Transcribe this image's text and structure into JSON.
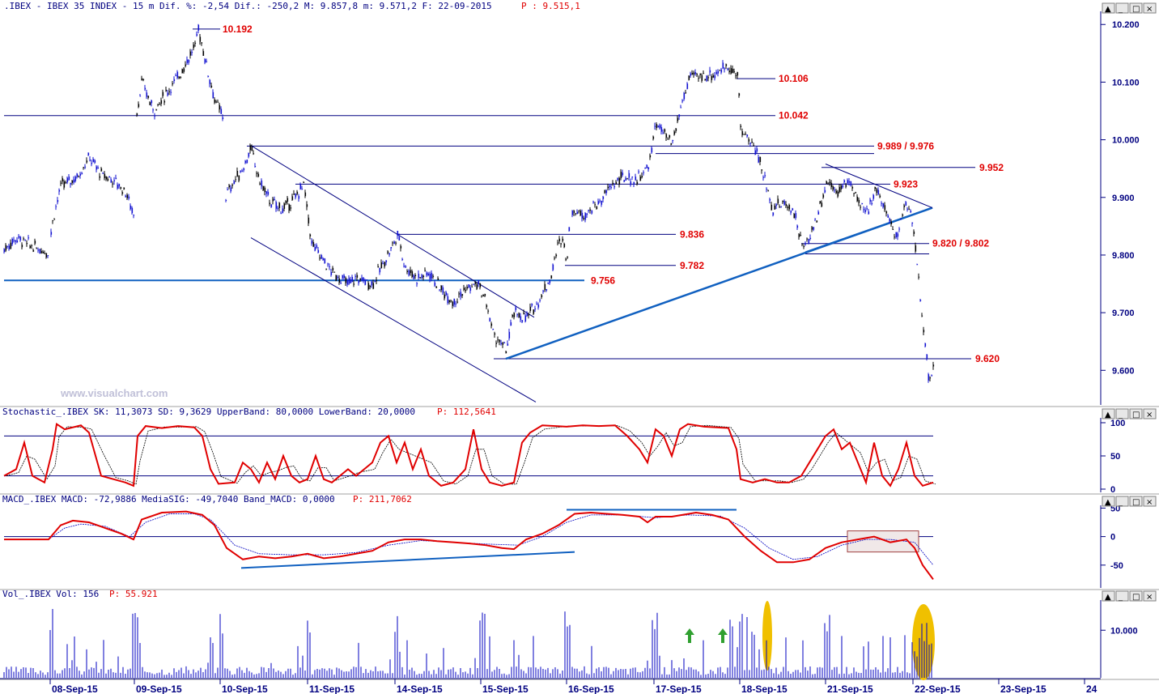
{
  "header": {
    "main": ".IBEX - IBEX 35 INDEX -  15 m Dif. %: -2,54 Dif.: -250,2 M: 9.857,8 m: 9.571,2 F: 22-09-2015",
    "main_p": "P : 9.515,1",
    "stoch": "Stochastic_.IBEX SK: 11,3073 SD: 9,3629 UpperBand: 80,0000 LowerBand: 20,0000",
    "stoch_p": "P: 112,5641",
    "macd": "MACD_.IBEX MACD: -72,9886 MediaSIG: -49,7040 Band_MACD: 0,0000",
    "macd_p": "P: 211,7062",
    "vol": "Vol_.IBEX Vol: 156",
    "vol_p": "P: 55.921"
  },
  "watermark": "www.visualchart.com",
  "colors": {
    "up": "#000000",
    "down": "#1010d0",
    "line": "#000080",
    "red": "#e00000",
    "trend": "#1060c0",
    "vol": "#0000c0",
    "highlight": "#f0c000"
  },
  "window_buttons": [
    "▲",
    "_",
    "□",
    "×"
  ],
  "chart_data": [
    {
      "type": "candlestick",
      "name": "price",
      "ylim": [
        9540,
        10220
      ],
      "yticks": [
        "10.200",
        "10.100",
        "10.000",
        "9.900",
        "9.800",
        "9.700",
        "9.600"
      ],
      "ytick_values": [
        10200,
        10100,
        10000,
        9900,
        9800,
        9700,
        9600
      ],
      "dates": [
        "08-Sep-15",
        "09-Sep-15",
        "10-Sep-15",
        "11-Sep-15",
        "14-Sep-15",
        "15-Sep-15",
        "16-Sep-15",
        "17-Sep-15",
        "18-Sep-15",
        "21-Sep-15",
        "22-Sep-15",
        "23-Sep-15",
        "24"
      ],
      "levels": [
        {
          "label": "10.192",
          "value": 10192
        },
        {
          "label": "10.106",
          "value": 10106
        },
        {
          "label": "10.042",
          "value": 10042
        },
        {
          "label": "9.989 / 9.976",
          "value": 9989
        },
        {
          "label": "9.952",
          "value": 9952
        },
        {
          "label": "9.923",
          "value": 9923
        },
        {
          "label": "9.836",
          "value": 9836
        },
        {
          "label": "9.820 / 9.802",
          "value": 9820
        },
        {
          "label": "9.782",
          "value": 9782
        },
        {
          "label": "9.756",
          "value": 9756
        },
        {
          "label": "9.620",
          "value": 9620
        }
      ],
      "path": [
        [
          5,
          9810
        ],
        [
          20,
          9830
        ],
        [
          40,
          9815
        ],
        [
          60,
          9805
        ],
        [
          65,
          9860
        ],
        [
          75,
          9920
        ],
        [
          95,
          9935
        ],
        [
          110,
          9970
        ],
        [
          125,
          9940
        ],
        [
          140,
          9930
        ],
        [
          155,
          9910
        ],
        [
          165,
          9870
        ],
        [
          168,
          10040
        ],
        [
          175,
          10100
        ],
        [
          190,
          10050
        ],
        [
          205,
          10080
        ],
        [
          220,
          10110
        ],
        [
          240,
          10160
        ],
        [
          245,
          10192
        ],
        [
          255,
          10130
        ],
        [
          265,
          10070
        ],
        [
          275,
          10040
        ],
        [
          278,
          9900
        ],
        [
          290,
          9930
        ],
        [
          300,
          9950
        ],
        [
          310,
          9985
        ],
        [
          320,
          9930
        ],
        [
          335,
          9890
        ],
        [
          350,
          9880
        ],
        [
          365,
          9900
        ],
        [
          375,
          9923
        ],
        [
          385,
          9820
        ],
        [
          395,
          9800
        ],
        [
          410,
          9770
        ],
        [
          430,
          9750
        ],
        [
          440,
          9760
        ],
        [
          460,
          9750
        ],
        [
          475,
          9790
        ],
        [
          492,
          9836
        ],
        [
          500,
          9780
        ],
        [
          515,
          9760
        ],
        [
          530,
          9770
        ],
        [
          545,
          9740
        ],
        [
          560,
          9720
        ],
        [
          575,
          9740
        ],
        [
          590,
          9750
        ],
        [
          600,
          9720
        ],
        [
          610,
          9660
        ],
        [
          625,
          9635
        ],
        [
          635,
          9700
        ],
        [
          650,
          9690
        ],
        [
          665,
          9720
        ],
        [
          680,
          9760
        ],
        [
          690,
          9820
        ],
        [
          696,
          9833
        ],
        [
          700,
          9782
        ],
        [
          705,
          9880
        ],
        [
          720,
          9870
        ],
        [
          740,
          9890
        ],
        [
          755,
          9920
        ],
        [
          770,
          9935
        ],
        [
          785,
          9930
        ],
        [
          800,
          9950
        ],
        [
          805,
          9980
        ],
        [
          810,
          10030
        ],
        [
          820,
          10010
        ],
        [
          830,
          9990
        ],
        [
          840,
          10050
        ],
        [
          852,
          10110
        ],
        [
          870,
          10110
        ],
        [
          885,
          10115
        ],
        [
          900,
          10130
        ],
        [
          912,
          10106
        ],
        [
          915,
          10020
        ],
        [
          925,
          10000
        ],
        [
          935,
          9980
        ],
        [
          945,
          9930
        ],
        [
          955,
          9880
        ],
        [
          965,
          9890
        ],
        [
          980,
          9880
        ],
        [
          992,
          9810
        ],
        [
          1000,
          9830
        ],
        [
          1010,
          9870
        ],
        [
          1022,
          9930
        ],
        [
          1035,
          9910
        ],
        [
          1050,
          9930
        ],
        [
          1060,
          9890
        ],
        [
          1070,
          9870
        ],
        [
          1082,
          9920
        ],
        [
          1092,
          9880
        ],
        [
          1100,
          9860
        ],
        [
          1108,
          9830
        ],
        [
          1118,
          9890
        ],
        [
          1125,
          9880
        ],
        [
          1130,
          9820
        ],
        [
          1135,
          9760
        ],
        [
          1140,
          9680
        ],
        [
          1145,
          9620
        ],
        [
          1148,
          9580
        ],
        [
          1153,
          9610
        ]
      ]
    },
    {
      "type": "line",
      "name": "stochastic",
      "ylim": [
        0,
        100
      ],
      "yticks": [
        "100",
        "50",
        "0"
      ],
      "ytick_values": [
        100,
        50,
        0
      ],
      "bands": [
        80,
        20
      ],
      "sk": [
        [
          5,
          20
        ],
        [
          20,
          30
        ],
        [
          30,
          70
        ],
        [
          40,
          20
        ],
        [
          55,
          10
        ],
        [
          65,
          60
        ],
        [
          70,
          98
        ],
        [
          80,
          90
        ],
        [
          100,
          96
        ],
        [
          110,
          85
        ],
        [
          125,
          20
        ],
        [
          140,
          15
        ],
        [
          155,
          10
        ],
        [
          165,
          5
        ],
        [
          170,
          80
        ],
        [
          180,
          95
        ],
        [
          200,
          92
        ],
        [
          220,
          95
        ],
        [
          240,
          93
        ],
        [
          250,
          80
        ],
        [
          260,
          30
        ],
        [
          270,
          8
        ],
        [
          290,
          10
        ],
        [
          300,
          40
        ],
        [
          310,
          30
        ],
        [
          320,
          10
        ],
        [
          330,
          40
        ],
        [
          340,
          15
        ],
        [
          350,
          50
        ],
        [
          360,
          20
        ],
        [
          370,
          10
        ],
        [
          380,
          15
        ],
        [
          390,
          50
        ],
        [
          400,
          15
        ],
        [
          410,
          10
        ],
        [
          430,
          30
        ],
        [
          440,
          20
        ],
        [
          460,
          40
        ],
        [
          470,
          70
        ],
        [
          480,
          80
        ],
        [
          490,
          40
        ],
        [
          500,
          70
        ],
        [
          510,
          30
        ],
        [
          520,
          60
        ],
        [
          530,
          20
        ],
        [
          545,
          5
        ],
        [
          560,
          10
        ],
        [
          575,
          30
        ],
        [
          585,
          90
        ],
        [
          595,
          30
        ],
        [
          605,
          10
        ],
        [
          620,
          5
        ],
        [
          635,
          10
        ],
        [
          645,
          70
        ],
        [
          655,
          85
        ],
        [
          670,
          96
        ],
        [
          700,
          94
        ],
        [
          720,
          96
        ],
        [
          740,
          95
        ],
        [
          760,
          96
        ],
        [
          775,
          80
        ],
        [
          790,
          60
        ],
        [
          800,
          40
        ],
        [
          810,
          90
        ],
        [
          820,
          80
        ],
        [
          830,
          50
        ],
        [
          840,
          90
        ],
        [
          850,
          98
        ],
        [
          870,
          94
        ],
        [
          900,
          92
        ],
        [
          910,
          60
        ],
        [
          915,
          15
        ],
        [
          930,
          10
        ],
        [
          945,
          15
        ],
        [
          960,
          10
        ],
        [
          975,
          10
        ],
        [
          990,
          20
        ],
        [
          1000,
          40
        ],
        [
          1010,
          60
        ],
        [
          1020,
          80
        ],
        [
          1030,
          90
        ],
        [
          1040,
          60
        ],
        [
          1050,
          70
        ],
        [
          1060,
          40
        ],
        [
          1070,
          10
        ],
        [
          1080,
          70
        ],
        [
          1090,
          20
        ],
        [
          1100,
          5
        ],
        [
          1110,
          30
        ],
        [
          1120,
          70
        ],
        [
          1130,
          20
        ],
        [
          1140,
          5
        ],
        [
          1153,
          10
        ]
      ]
    },
    {
      "type": "line",
      "name": "macd",
      "ylim": [
        -90,
        52
      ],
      "yticks": [
        "50",
        "0",
        "-50"
      ],
      "ytick_values": [
        50,
        0,
        -50
      ],
      "macd": [
        [
          5,
          -5
        ],
        [
          40,
          -5
        ],
        [
          60,
          -5
        ],
        [
          75,
          20
        ],
        [
          90,
          28
        ],
        [
          110,
          25
        ],
        [
          130,
          15
        ],
        [
          150,
          5
        ],
        [
          165,
          -5
        ],
        [
          175,
          30
        ],
        [
          200,
          42
        ],
        [
          230,
          44
        ],
        [
          250,
          38
        ],
        [
          265,
          20
        ],
        [
          280,
          -20
        ],
        [
          300,
          -40
        ],
        [
          320,
          -35
        ],
        [
          340,
          -38
        ],
        [
          360,
          -35
        ],
        [
          380,
          -30
        ],
        [
          400,
          -38
        ],
        [
          420,
          -35
        ],
        [
          440,
          -30
        ],
        [
          460,
          -25
        ],
        [
          480,
          -10
        ],
        [
          500,
          -5
        ],
        [
          520,
          -5
        ],
        [
          540,
          -8
        ],
        [
          560,
          -10
        ],
        [
          580,
          -12
        ],
        [
          600,
          -15
        ],
        [
          620,
          -20
        ],
        [
          635,
          -22
        ],
        [
          650,
          -5
        ],
        [
          670,
          5
        ],
        [
          690,
          20
        ],
        [
          710,
          40
        ],
        [
          730,
          42
        ],
        [
          750,
          40
        ],
        [
          770,
          38
        ],
        [
          790,
          35
        ],
        [
          800,
          25
        ],
        [
          810,
          35
        ],
        [
          830,
          35
        ],
        [
          860,
          42
        ],
        [
          880,
          38
        ],
        [
          900,
          30
        ],
        [
          920,
          0
        ],
        [
          940,
          -25
        ],
        [
          960,
          -45
        ],
        [
          980,
          -45
        ],
        [
          1000,
          -40
        ],
        [
          1020,
          -20
        ],
        [
          1040,
          -10
        ],
        [
          1060,
          -5
        ],
        [
          1080,
          0
        ],
        [
          1100,
          -10
        ],
        [
          1120,
          -5
        ],
        [
          1130,
          -20
        ],
        [
          1140,
          -50
        ],
        [
          1153,
          -75
        ]
      ],
      "signal": [
        [
          5,
          -5
        ],
        [
          60,
          -5
        ],
        [
          80,
          15
        ],
        [
          100,
          22
        ],
        [
          130,
          18
        ],
        [
          160,
          0
        ],
        [
          180,
          25
        ],
        [
          210,
          40
        ],
        [
          240,
          40
        ],
        [
          260,
          30
        ],
        [
          290,
          -15
        ],
        [
          320,
          -30
        ],
        [
          360,
          -32
        ],
        [
          400,
          -32
        ],
        [
          440,
          -28
        ],
        [
          480,
          -15
        ],
        [
          520,
          -7
        ],
        [
          560,
          -10
        ],
        [
          600,
          -13
        ],
        [
          640,
          -15
        ],
        [
          670,
          0
        ],
        [
          700,
          25
        ],
        [
          730,
          38
        ],
        [
          770,
          38
        ],
        [
          810,
          33
        ],
        [
          850,
          38
        ],
        [
          890,
          36
        ],
        [
          920,
          15
        ],
        [
          950,
          -20
        ],
        [
          980,
          -40
        ],
        [
          1010,
          -35
        ],
        [
          1040,
          -15
        ],
        [
          1070,
          -5
        ],
        [
          1100,
          -5
        ],
        [
          1130,
          -10
        ],
        [
          1153,
          -50
        ]
      ]
    },
    {
      "type": "bar",
      "name": "volume",
      "ylim": [
        0,
        16000
      ],
      "yticks": [
        "10.000"
      ],
      "ytick_values": [
        10000
      ],
      "session_starts": [
        62,
        166,
        272,
        380,
        488,
        594,
        700,
        808,
        914,
        1020,
        1128
      ]
    }
  ]
}
